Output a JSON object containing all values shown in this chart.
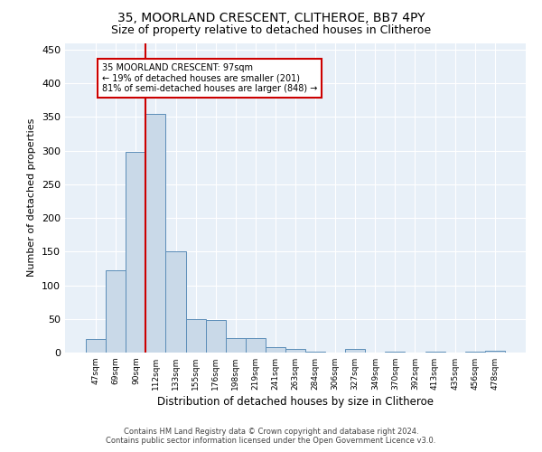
{
  "title": "35, MOORLAND CRESCENT, CLITHEROE, BB7 4PY",
  "subtitle": "Size of property relative to detached houses in Clitheroe",
  "xlabel": "Distribution of detached houses by size in Clitheroe",
  "ylabel": "Number of detached properties",
  "bar_labels": [
    "47sqm",
    "69sqm",
    "90sqm",
    "112sqm",
    "133sqm",
    "155sqm",
    "176sqm",
    "198sqm",
    "219sqm",
    "241sqm",
    "263sqm",
    "284sqm",
    "306sqm",
    "327sqm",
    "349sqm",
    "370sqm",
    "392sqm",
    "413sqm",
    "435sqm",
    "456sqm",
    "478sqm"
  ],
  "bar_values": [
    20,
    122,
    298,
    354,
    150,
    50,
    49,
    22,
    22,
    8,
    6,
    2,
    0,
    5,
    0,
    2,
    0,
    2,
    0,
    2,
    3
  ],
  "bar_color": "#c9d9e8",
  "bar_edge_color": "#5b8db8",
  "vline_x_index": 2,
  "vline_color": "#cc0000",
  "annotation_text": "35 MOORLAND CRESCENT: 97sqm\n← 19% of detached houses are smaller (201)\n81% of semi-detached houses are larger (848) →",
  "annotation_box_color": "#ffffff",
  "annotation_box_edge_color": "#cc0000",
  "ylim": [
    0,
    460
  ],
  "yticks": [
    0,
    50,
    100,
    150,
    200,
    250,
    300,
    350,
    400,
    450
  ],
  "footer_line1": "Contains HM Land Registry data © Crown copyright and database right 2024.",
  "footer_line2": "Contains public sector information licensed under the Open Government Licence v3.0.",
  "plot_bg_color": "#e8f0f8",
  "fig_bg_color": "#ffffff",
  "title_fontsize": 10,
  "subtitle_fontsize": 9,
  "annotation_fontsize": 7,
  "ylabel_fontsize": 8,
  "xlabel_fontsize": 8.5
}
